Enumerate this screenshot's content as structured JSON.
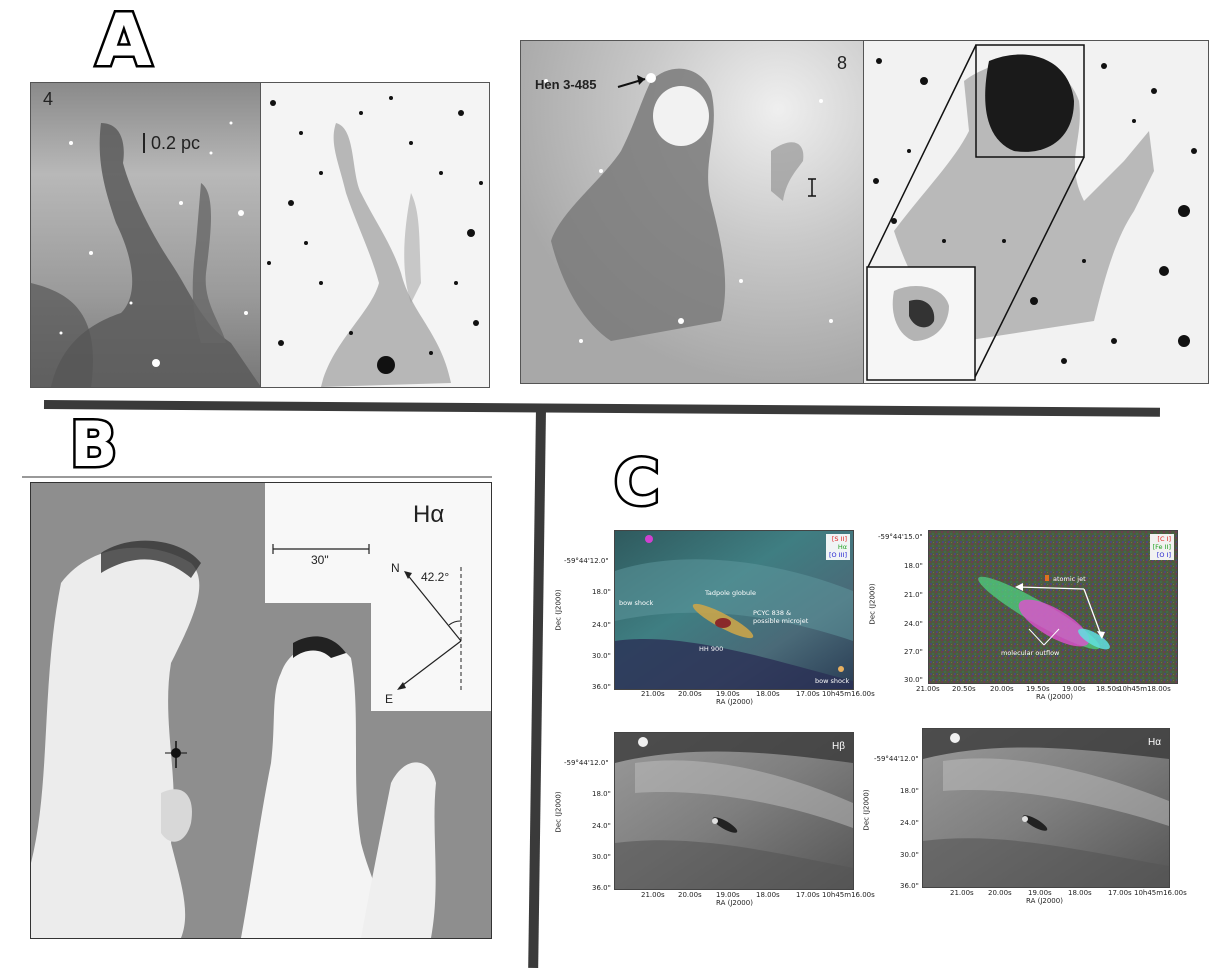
{
  "section_a": {
    "letter": "A",
    "left_panel": {
      "number": "4",
      "scale_label": "0.2 pc"
    },
    "right_panel": {
      "number": "8",
      "object_label": "Hen 3-485"
    }
  },
  "section_b": {
    "letter": "B",
    "filter_label": "Hα",
    "scale_label": "30\"",
    "north_label": "N",
    "east_label": "E",
    "angle_label": "42.2°"
  },
  "section_c": {
    "letter": "C",
    "panels": [
      {
        "id": "rgb-optical",
        "y_ticks": [
          "-59°44'12.0\"",
          "18.0\"",
          "24.0\"",
          "30.0\"",
          "36.0\""
        ],
        "x_ticks": [
          "21.00s",
          "20.00s",
          "19.00s",
          "18.00s",
          "17.00s",
          "10h45m16.00s"
        ],
        "xlabel": "RA (J2000)",
        "ylabel": "Dec (J2000)",
        "legend": [
          {
            "text": "[S II]",
            "color": "#e02020"
          },
          {
            "text": "Hα",
            "color": "#20a020"
          },
          {
            "text": "[O III]",
            "color": "#2020d0"
          }
        ],
        "annotations": {
          "bow_shock_left": "bow shock",
          "tadpole": "Tadpole globule",
          "pcyc": "PCYC 838 &",
          "pcyc2": "possible microjet",
          "hh": "HH 900",
          "bow_shock_right": "bow shock"
        }
      },
      {
        "id": "rgb-lines",
        "y_ticks": [
          "-59°44'15.0\"",
          "18.0\"",
          "21.0\"",
          "24.0\"",
          "27.0\"",
          "30.0\""
        ],
        "x_ticks": [
          "21.00s",
          "20.50s",
          "20.00s",
          "19.50s",
          "19.00s",
          "18.50s",
          "10h45m18.00s"
        ],
        "xlabel": "RA (J2000)",
        "ylabel": "Dec (J2000)",
        "legend": [
          {
            "text": "[C I]",
            "color": "#e02020"
          },
          {
            "text": "[Fe II]",
            "color": "#20a020"
          },
          {
            "text": "[O I]",
            "color": "#2020d0"
          }
        ],
        "annotations": {
          "atomic_jet": "atomic jet",
          "molecular_outflow": "molecular outflow"
        }
      },
      {
        "id": "hbeta",
        "filter": "Hβ",
        "y_ticks": [
          "-59°44'12.0\"",
          "18.0\"",
          "24.0\"",
          "30.0\"",
          "36.0\""
        ],
        "x_ticks": [
          "21.00s",
          "20.00s",
          "19.00s",
          "18.00s",
          "17.00s",
          "10h45m16.00s"
        ],
        "xlabel": "RA (J2000)",
        "ylabel": "Dec (J2000)"
      },
      {
        "id": "halpha",
        "filter": "Hα",
        "y_ticks": [
          "-59°44'12.0\"",
          "18.0\"",
          "24.0\"",
          "30.0\"",
          "36.0\""
        ],
        "x_ticks": [
          "21.00s",
          "20.00s",
          "19.00s",
          "18.00s",
          "17.00s",
          "10h45m16.00s"
        ],
        "xlabel": "RA (J2000)",
        "ylabel": "Dec (J2000)"
      }
    ]
  }
}
